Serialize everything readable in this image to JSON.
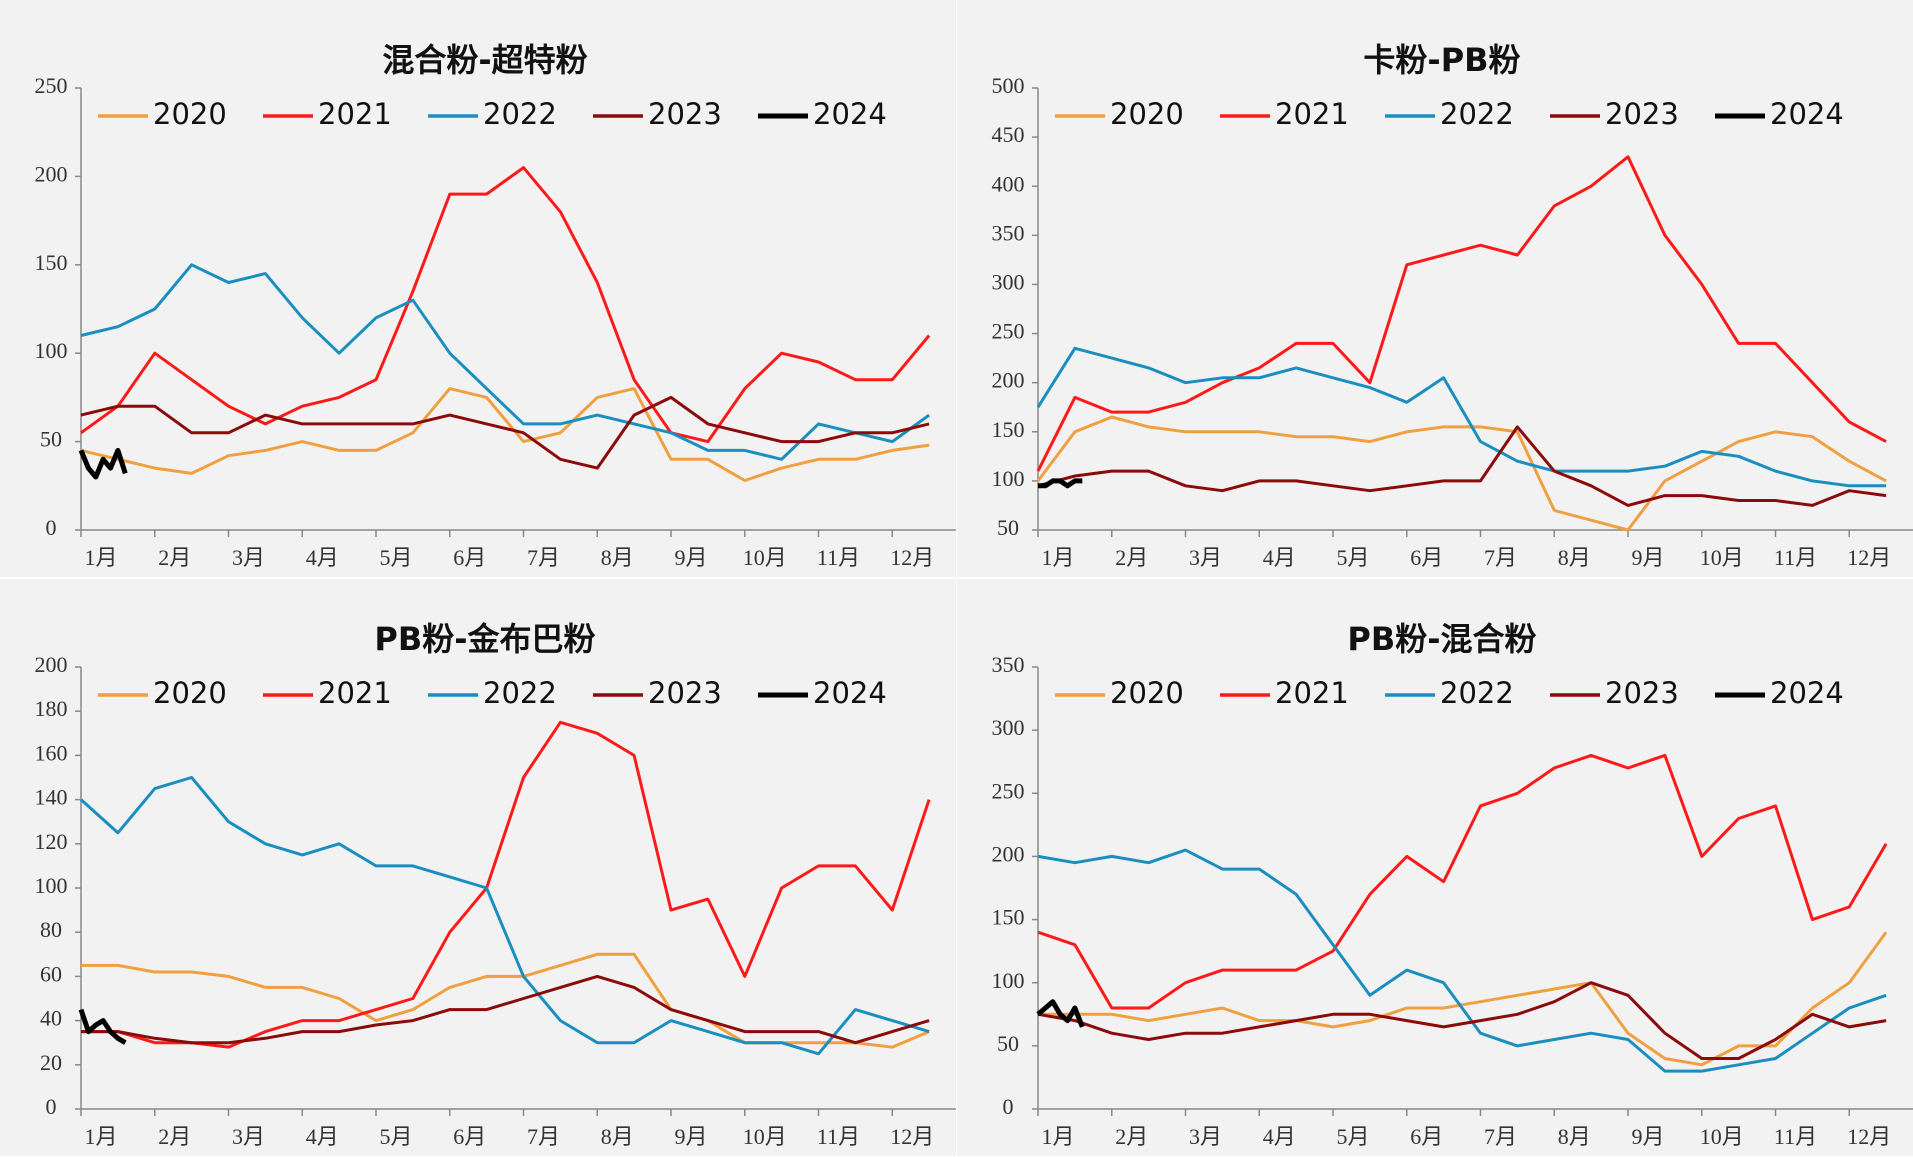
{
  "chart_data": [
    {
      "type": "line",
      "title": "混合粉-超特粉",
      "x": [
        1,
        1.5,
        2,
        2.5,
        3,
        3.5,
        4,
        4.5,
        5,
        5.5,
        6,
        6.5,
        7,
        7.5,
        8,
        8.5,
        9,
        9.5,
        10,
        10.5,
        11,
        11.5,
        12,
        12.5
      ],
      "xlim": [
        1,
        13
      ],
      "xticks": [
        {
          "value": 1,
          "label": "1月"
        },
        {
          "value": 2,
          "label": "2月"
        },
        {
          "value": 3,
          "label": "3月"
        },
        {
          "value": 4,
          "label": "4月"
        },
        {
          "value": 5,
          "label": "5月"
        },
        {
          "value": 6,
          "label": "6月"
        },
        {
          "value": 7,
          "label": "7月"
        },
        {
          "value": 8,
          "label": "8月"
        },
        {
          "value": 9,
          "label": "9月"
        },
        {
          "value": 10,
          "label": "10月"
        },
        {
          "value": 11,
          "label": "11月"
        },
        {
          "value": 12,
          "label": "12月"
        }
      ],
      "ylim": [
        0,
        250
      ],
      "yticks": [
        0,
        50,
        100,
        150,
        200,
        250
      ],
      "series": [
        {
          "name": "2020",
          "color": "#f0a040",
          "values": [
            45,
            40,
            35,
            32,
            42,
            45,
            50,
            45,
            45,
            55,
            80,
            75,
            50,
            55,
            75,
            80,
            40,
            40,
            28,
            35,
            40,
            40,
            45,
            48
          ]
        },
        {
          "name": "2021",
          "color": "#ff1a1a",
          "values": [
            55,
            70,
            100,
            85,
            70,
            60,
            70,
            75,
            85,
            135,
            190,
            190,
            205,
            180,
            140,
            85,
            55,
            50,
            80,
            100,
            95,
            85,
            85,
            110
          ]
        },
        {
          "name": "2022",
          "color": "#1a8fbf",
          "values": [
            110,
            115,
            125,
            150,
            140,
            145,
            120,
            100,
            120,
            130,
            100,
            80,
            60,
            60,
            65,
            60,
            55,
            45,
            45,
            40,
            60,
            55,
            50,
            65
          ]
        },
        {
          "name": "2023",
          "color": "#8b0a0a",
          "values": [
            65,
            70,
            70,
            55,
            55,
            65,
            60,
            60,
            60,
            60,
            65,
            60,
            55,
            40,
            35,
            65,
            75,
            60,
            55,
            50,
            50,
            55,
            55,
            60
          ]
        },
        {
          "name": "2024",
          "color": "#000000",
          "x": [
            1,
            1.1,
            1.2,
            1.3,
            1.4,
            1.5,
            1.6
          ],
          "values": [
            45,
            35,
            30,
            40,
            35,
            45,
            32
          ]
        }
      ]
    },
    {
      "type": "line",
      "title": "卡粉-PB粉",
      "x": [
        1,
        1.5,
        2,
        2.5,
        3,
        3.5,
        4,
        4.5,
        5,
        5.5,
        6,
        6.5,
        7,
        7.5,
        8,
        8.5,
        9,
        9.5,
        10,
        10.5,
        11,
        11.5,
        12,
        12.5
      ],
      "xlim": [
        1,
        13
      ],
      "xticks": [
        {
          "value": 1,
          "label": "1月"
        },
        {
          "value": 2,
          "label": "2月"
        },
        {
          "value": 3,
          "label": "3月"
        },
        {
          "value": 4,
          "label": "4月"
        },
        {
          "value": 5,
          "label": "5月"
        },
        {
          "value": 6,
          "label": "6月"
        },
        {
          "value": 7,
          "label": "7月"
        },
        {
          "value": 8,
          "label": "8月"
        },
        {
          "value": 9,
          "label": "9月"
        },
        {
          "value": 10,
          "label": "10月"
        },
        {
          "value": 11,
          "label": "11月"
        },
        {
          "value": 12,
          "label": "12月"
        }
      ],
      "ylim": [
        50,
        500
      ],
      "yticks": [
        50,
        100,
        150,
        200,
        250,
        300,
        350,
        400,
        450,
        500
      ],
      "series": [
        {
          "name": "2020",
          "color": "#f0a040",
          "values": [
            100,
            150,
            165,
            155,
            150,
            150,
            150,
            145,
            145,
            140,
            150,
            155,
            155,
            150,
            70,
            60,
            50,
            100,
            120,
            140,
            150,
            145,
            120,
            100
          ]
        },
        {
          "name": "2021",
          "color": "#ff1a1a",
          "values": [
            110,
            185,
            170,
            170,
            180,
            200,
            215,
            240,
            240,
            200,
            320,
            330,
            340,
            330,
            380,
            400,
            430,
            350,
            300,
            240,
            240,
            200,
            160,
            140
          ]
        },
        {
          "name": "2022",
          "color": "#1a8fbf",
          "values": [
            175,
            235,
            225,
            215,
            200,
            205,
            205,
            215,
            205,
            195,
            180,
            205,
            140,
            120,
            110,
            110,
            110,
            115,
            130,
            125,
            110,
            100,
            95,
            95
          ]
        },
        {
          "name": "2023",
          "color": "#8b0a0a",
          "values": [
            95,
            105,
            110,
            110,
            95,
            90,
            100,
            100,
            95,
            90,
            95,
            100,
            100,
            155,
            110,
            95,
            75,
            85,
            85,
            80,
            80,
            75,
            90,
            85
          ]
        },
        {
          "name": "2024",
          "color": "#000000",
          "x": [
            1,
            1.1,
            1.2,
            1.3,
            1.4,
            1.5,
            1.6
          ],
          "values": [
            95,
            95,
            100,
            100,
            95,
            100,
            100
          ]
        }
      ]
    },
    {
      "type": "line",
      "title": "PB粉-金布巴粉",
      "x": [
        1,
        1.5,
        2,
        2.5,
        3,
        3.5,
        4,
        4.5,
        5,
        5.5,
        6,
        6.5,
        7,
        7.5,
        8,
        8.5,
        9,
        9.5,
        10,
        10.5,
        11,
        11.5,
        12,
        12.5
      ],
      "xlim": [
        1,
        13
      ],
      "xticks": [
        {
          "value": 1,
          "label": "1月"
        },
        {
          "value": 2,
          "label": "2月"
        },
        {
          "value": 3,
          "label": "3月"
        },
        {
          "value": 4,
          "label": "4月"
        },
        {
          "value": 5,
          "label": "5月"
        },
        {
          "value": 6,
          "label": "6月"
        },
        {
          "value": 7,
          "label": "7月"
        },
        {
          "value": 8,
          "label": "8月"
        },
        {
          "value": 9,
          "label": "9月"
        },
        {
          "value": 10,
          "label": "10月"
        },
        {
          "value": 11,
          "label": "11月"
        },
        {
          "value": 12,
          "label": "12月"
        }
      ],
      "ylim": [
        0,
        200
      ],
      "yticks": [
        0,
        20,
        40,
        60,
        80,
        100,
        120,
        140,
        160,
        180,
        200
      ],
      "series": [
        {
          "name": "2020",
          "color": "#f0a040",
          "values": [
            65,
            65,
            62,
            62,
            60,
            55,
            55,
            50,
            40,
            45,
            55,
            60,
            60,
            65,
            70,
            70,
            45,
            40,
            30,
            30,
            30,
            30,
            28,
            35
          ]
        },
        {
          "name": "2021",
          "color": "#ff1a1a",
          "values": [
            35,
            35,
            30,
            30,
            28,
            35,
            40,
            40,
            45,
            50,
            80,
            100,
            150,
            175,
            170,
            160,
            90,
            95,
            60,
            100,
            110,
            110,
            90,
            140
          ]
        },
        {
          "name": "2022",
          "color": "#1a8fbf",
          "values": [
            140,
            125,
            145,
            150,
            130,
            120,
            115,
            120,
            110,
            110,
            105,
            100,
            60,
            40,
            30,
            30,
            40,
            35,
            30,
            30,
            25,
            45,
            40,
            35
          ]
        },
        {
          "name": "2023",
          "color": "#8b0a0a",
          "values": [
            35,
            35,
            32,
            30,
            30,
            32,
            35,
            35,
            38,
            40,
            45,
            45,
            50,
            55,
            60,
            55,
            45,
            40,
            35,
            35,
            35,
            30,
            35,
            40
          ]
        },
        {
          "name": "2024",
          "color": "#000000",
          "x": [
            1,
            1.1,
            1.2,
            1.3,
            1.4,
            1.5,
            1.6
          ],
          "values": [
            45,
            35,
            38,
            40,
            35,
            32,
            30
          ]
        }
      ]
    },
    {
      "type": "line",
      "title": "PB粉-混合粉",
      "x": [
        1,
        1.5,
        2,
        2.5,
        3,
        3.5,
        4,
        4.5,
        5,
        5.5,
        6,
        6.5,
        7,
        7.5,
        8,
        8.5,
        9,
        9.5,
        10,
        10.5,
        11,
        11.5,
        12,
        12.5
      ],
      "xlim": [
        1,
        13
      ],
      "xticks": [
        {
          "value": 1,
          "label": "1月"
        },
        {
          "value": 2,
          "label": "2月"
        },
        {
          "value": 3,
          "label": "3月"
        },
        {
          "value": 4,
          "label": "4月"
        },
        {
          "value": 5,
          "label": "5月"
        },
        {
          "value": 6,
          "label": "6月"
        },
        {
          "value": 7,
          "label": "7月"
        },
        {
          "value": 8,
          "label": "8月"
        },
        {
          "value": 9,
          "label": "9月"
        },
        {
          "value": 10,
          "label": "10月"
        },
        {
          "value": 11,
          "label": "11月"
        },
        {
          "value": 12,
          "label": "12月"
        }
      ],
      "ylim": [
        0,
        350
      ],
      "yticks": [
        0,
        50,
        100,
        150,
        200,
        250,
        300,
        350
      ],
      "series": [
        {
          "name": "2020",
          "color": "#f0a040",
          "values": [
            75,
            75,
            75,
            70,
            75,
            80,
            70,
            70,
            65,
            70,
            80,
            80,
            85,
            90,
            95,
            100,
            60,
            40,
            35,
            50,
            50,
            80,
            100,
            140
          ]
        },
        {
          "name": "2021",
          "color": "#ff1a1a",
          "values": [
            140,
            130,
            80,
            80,
            100,
            110,
            110,
            110,
            125,
            170,
            200,
            180,
            240,
            250,
            270,
            280,
            270,
            280,
            200,
            230,
            240,
            150,
            160,
            210
          ]
        },
        {
          "name": "2022",
          "color": "#1a8fbf",
          "values": [
            200,
            195,
            200,
            195,
            205,
            190,
            190,
            170,
            130,
            90,
            110,
            100,
            60,
            50,
            55,
            60,
            55,
            30,
            30,
            35,
            40,
            60,
            80,
            90
          ]
        },
        {
          "name": "2023",
          "color": "#8b0a0a",
          "values": [
            75,
            70,
            60,
            55,
            60,
            60,
            65,
            70,
            75,
            75,
            70,
            65,
            70,
            75,
            85,
            100,
            90,
            60,
            40,
            40,
            55,
            75,
            65,
            70
          ]
        },
        {
          "name": "2024",
          "color": "#000000",
          "x": [
            1,
            1.1,
            1.2,
            1.3,
            1.4,
            1.5,
            1.6
          ],
          "values": [
            75,
            80,
            85,
            75,
            70,
            80,
            65
          ]
        }
      ]
    }
  ]
}
